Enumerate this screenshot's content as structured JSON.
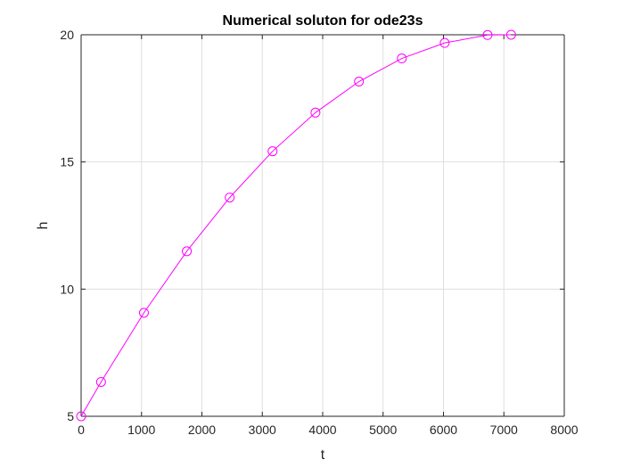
{
  "chart_data": {
    "type": "line",
    "title": "Numerical soluton for ode23s",
    "xlabel": "t",
    "ylabel": "h",
    "xlim": [
      0,
      8000
    ],
    "ylim": [
      5,
      20
    ],
    "xticks": [
      0,
      1000,
      2000,
      3000,
      4000,
      5000,
      6000,
      7000,
      8000
    ],
    "yticks": [
      5,
      10,
      15,
      20
    ],
    "grid": true,
    "marker": "circle",
    "color": "#ff00ff",
    "series": [
      {
        "x": [
          0,
          330,
          1040,
          1750,
          2460,
          3170,
          3880,
          4600,
          5310,
          6020,
          6730,
          7120
        ],
        "y": [
          5.0,
          6.35,
          9.07,
          11.49,
          13.6,
          15.42,
          16.94,
          18.16,
          19.07,
          19.68,
          19.99,
          20.0
        ]
      }
    ]
  }
}
